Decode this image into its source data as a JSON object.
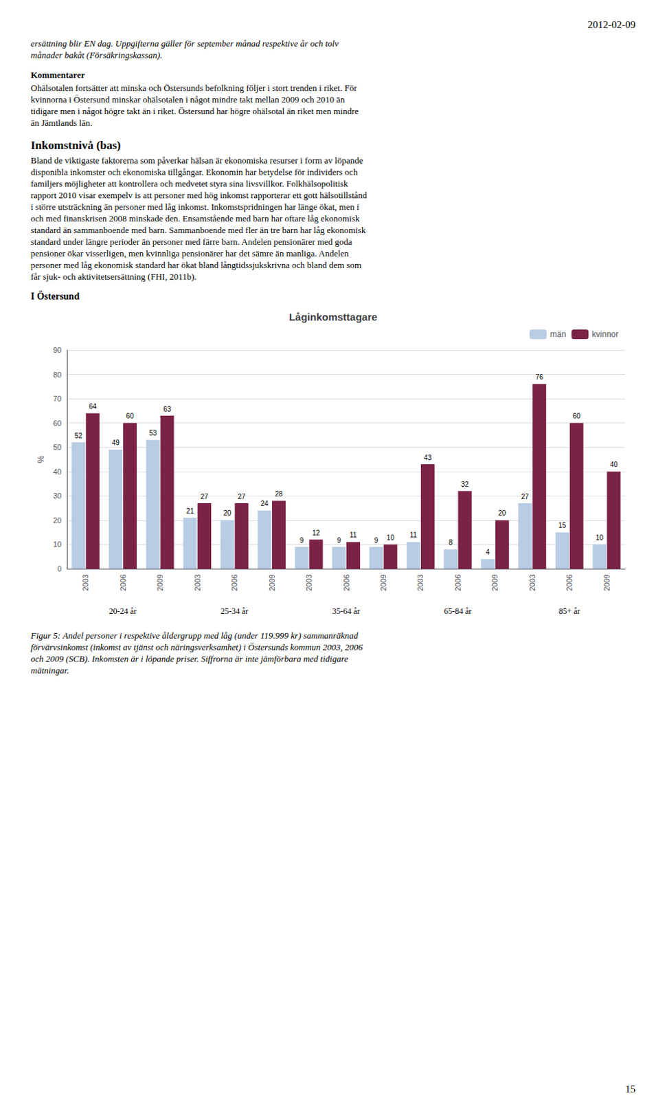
{
  "page_title": "2012-02-09",
  "text_block1": "ersättning blir EN dag. Uppgifterna gäller för september månad respektive år och tolv\nmånader bakåt (Försäkringskassan).",
  "kommentarer_heading": "Kommentarer",
  "kommentarer_body": "Ohälsotalen fortsätter att minska och Östersunds befolkning följer i stort trenden i riket. För\nkvinnorna i Östersund minskar ohälsotalen i något mindre takt mellan 2009 och 2010 än\ntidigare men i något högre takt än i riket. Östersund har högre ohälsotal än riket men mindre\nän Jämtlands län.",
  "inkomst_heading": "Inkomstnivå (bas)",
  "inkomst_body": "Bland de viktigaste faktorerna som påverkar hälsan är ekonomiska resurser i form av löpande\ndisponibla inkomster och ekonomiska tillgångar. Ekonomin har betydelse för individers och\nfamiljers möjligheter att kontrollera och medvetet styra sina livsvillkor. Folkhälsopolitisk\nrapport 2010 visar exempelv is att personer med hög inkomst rapporterar ett gott hälsotillstånd\ni större utsträckning än personer med låg inkomst. Inkomstspridningen har länge ökat, men i\noch med finanskrisen 2008 minskade den. Ensamstående med barn har oftare låg ekonomisk\nstandard än sammanboende med barn. Sammanboende med fler än tre barn har låg ekonomisk\nstandard under längre perioder än personer med färre barn. Andelen pensionärer med goda\npensioner ökar visserligen, men kvinnliga pensionärer har det sämre än manliga. Andelen\npersoner med låg ekonomisk standard har ökat bland långtidssjukskrivna och bland dem som\nfår sjuk- och aktivitetsersättning (FHI, 2011b).",
  "i_ostersund": "I Östersund",
  "caption": "Figur 5: Andel personer i respektive åldergrupp med låg (under 119.999 kr) sammanräknad\nförvärvsinkomst (inkomst av tjänst och näringsverksamhet) i Östersunds kommun 2003, 2006\noch 2009 (SCB). Inkomsten är i löpande priser. Siffrorna är inte jämförbara med tidigare\nmätningar.",
  "page_number": "15",
  "chart_data": {
    "type": "bar",
    "title": "Låginkomsttagare",
    "categories": [
      "2003",
      "2006",
      "2009",
      "2003",
      "2006",
      "2009",
      "2003",
      "2006",
      "2009",
      "2003",
      "2006",
      "2009",
      "2003",
      "2006",
      "2009"
    ],
    "category_groups": [
      "20-24 år",
      "25-34 år",
      "35-64 år",
      "65-84 år",
      "85+ år"
    ],
    "series": [
      {
        "name": "män",
        "color": "#b8cce4",
        "values": [
          52,
          49,
          53,
          21,
          20,
          24,
          9,
          9,
          9,
          11,
          8,
          4,
          27,
          15,
          10
        ]
      },
      {
        "name": "kvinnor",
        "color": "#7b2346",
        "values": [
          64,
          60,
          63,
          27,
          27,
          28,
          12,
          11,
          10,
          43,
          32,
          20,
          76,
          60,
          40
        ]
      }
    ],
    "ylabel": "%",
    "ylim": [
      0,
      90
    ],
    "yticks": [
      0,
      10,
      20,
      30,
      40,
      50,
      60,
      70,
      80,
      90
    ],
    "grid": true,
    "legend": "upper right",
    "data_labels": true
  }
}
